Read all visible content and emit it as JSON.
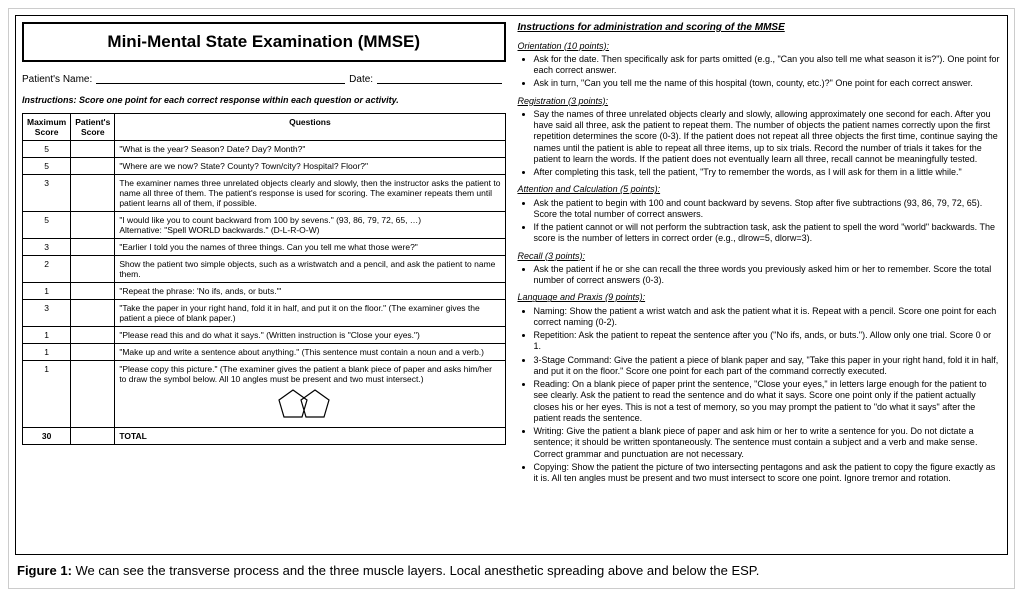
{
  "title": "Mini-Mental State Examination (MMSE)",
  "patient_name_label": "Patient's Name:",
  "date_label": "Date:",
  "instructions_line": "Instructions: Score one point for each correct response within each question or activity.",
  "table": {
    "headers": {
      "max": "Maximum Score",
      "pat": "Patient's Score",
      "q": "Questions"
    },
    "rows": [
      {
        "max": "5",
        "q": "\"What is the year? Season? Date? Day? Month?\""
      },
      {
        "max": "5",
        "q": "\"Where are we now? State? County? Town/city? Hospital? Floor?\""
      },
      {
        "max": "3",
        "q": "The examiner names three unrelated objects clearly and slowly, then the instructor asks the patient to name all three of them. The patient's response is used for scoring. The examiner repeats them until patient learns all of them, if possible."
      },
      {
        "max": "5",
        "q": "\"I would like you to count backward from 100 by sevens.\" (93, 86, 79, 72, 65, …)\nAlternative: \"Spell WORLD backwards.\" (D-L-R-O-W)"
      },
      {
        "max": "3",
        "q": "\"Earlier I told you the names of three things. Can you tell me what those were?\""
      },
      {
        "max": "2",
        "q": "Show the patient two simple objects, such as a wristwatch and a pencil, and ask the patient to name them."
      },
      {
        "max": "1",
        "q": "\"Repeat the phrase: 'No ifs, ands, or buts.'\""
      },
      {
        "max": "3",
        "q": "\"Take the paper in your right hand, fold it in half, and put it on the floor.\" (The examiner gives the patient a piece of blank paper.)"
      },
      {
        "max": "1",
        "q": "\"Please read this and do what it says.\" (Written instruction is \"Close your eyes.\")"
      },
      {
        "max": "1",
        "q": "\"Make up and write a sentence about anything.\" (This sentence must contain a noun and a verb.)"
      },
      {
        "max": "1",
        "q": "\"Please copy this picture.\" (The examiner gives the patient a blank piece of paper and asks him/her to draw the symbol below. All 10 angles must be present and two must intersect.)",
        "pentagons": true
      }
    ],
    "total_row": {
      "max": "30",
      "label": "TOTAL"
    }
  },
  "right": {
    "main_head": "Instructions for administration and scoring of the MMSE",
    "sections": [
      {
        "head": "Orientation (10 points):",
        "items": [
          "Ask for the date. Then specifically ask for parts omitted (e.g., \"Can you also tell me what season it is?\"). One point for each correct answer.",
          "Ask in turn, \"Can you tell me the name of this hospital (town, county, etc.)?\" One point for each correct answer."
        ]
      },
      {
        "head": "Registration (3 points):",
        "items": [
          "Say the names of three unrelated objects clearly and slowly, allowing approximately one second for each. After you have said all three, ask the patient to repeat them. The number of objects the patient names correctly upon the first repetition determines the score (0-3). If the patient does not repeat all three objects the first time, continue saying the names until the patient is able to repeat all three items, up to six trials. Record the number of trials it takes for the patient to learn the words. If the patient does not eventually learn all three, recall cannot be meaningfully tested.",
          "After completing this task, tell the patient, \"Try to remember the words, as I will ask for them in a little while.\""
        ]
      },
      {
        "head": "Attention and Calculation (5 points):",
        "items": [
          "Ask the patient to begin with 100 and count backward by sevens. Stop after five subtractions (93, 86, 79, 72, 65). Score the total number of correct answers.",
          "If the patient cannot or will not perform the subtraction task, ask the patient to spell the word \"world\" backwards. The score is the number of letters in correct order (e.g., dlrow=5, dlorw=3)."
        ]
      },
      {
        "head": "Recall (3 points):",
        "items": [
          "Ask the patient if he or she can recall the three words you previously asked him or her to remember. Score the total number of correct answers (0-3)."
        ]
      },
      {
        "head": "Language and Praxis (9 points):",
        "items": [
          "Naming: Show the patient a wrist watch and ask the patient what it is. Repeat with a pencil. Score one point for each correct naming (0-2).",
          "Repetition: Ask the patient to repeat the sentence after you (\"No ifs, ands, or buts.\"). Allow only one trial. Score 0 or 1.",
          "3-Stage Command: Give the patient a piece of blank paper and say, \"Take this paper in your right hand, fold it in half, and put it on the floor.\" Score one point for each part of the command correctly executed.",
          "Reading: On a blank piece of paper print the sentence, \"Close your eyes,\" in letters large enough for the patient to see clearly. Ask the patient to read the sentence and do what it says. Score one point only if the patient actually closes his or her eyes. This is not a test of memory, so you may prompt the patient to \"do what it says\" after the patient reads the sentence.",
          "Writing: Give the patient a blank piece of paper and ask him or her to write a sentence for you. Do not dictate a sentence; it should be written spontaneously. The sentence must contain a subject and a verb and make sense. Correct grammar and punctuation are not necessary.",
          "Copying: Show the patient the picture of two intersecting pentagons and ask the patient to copy the figure exactly as it is. All ten angles must be present and two must intersect to score one point. Ignore tremor and rotation."
        ]
      }
    ]
  },
  "caption_bold": "Figure 1:",
  "caption_text": " We can see the transverse process and the three muscle layers. Local anesthetic spreading above and below the ESP."
}
